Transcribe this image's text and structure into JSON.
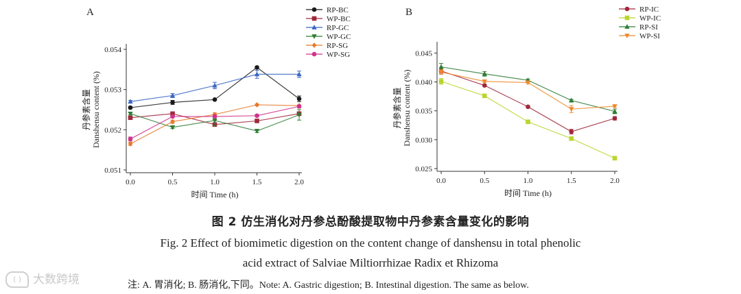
{
  "chart_data": [
    {
      "type": "line",
      "panel_label": "A",
      "xlabel": "时间 Time (h)",
      "ylabel_cn": "丹参素含量",
      "ylabel_en": "Danshensu content (%)",
      "x": [
        0.0,
        0.5,
        1.0,
        1.5,
        2.0
      ],
      "xticks": [
        "0.0",
        "0.5",
        "1.0",
        "1.5",
        "2.0"
      ],
      "ylim": [
        0.051,
        0.054
      ],
      "yticks": [
        "0.051",
        "0.052",
        "0.053",
        "0.054"
      ],
      "legend_position": "top-right",
      "series": [
        {
          "name": "RP-BC",
          "marker": "circle",
          "color": "#1a1a1a",
          "values": [
            0.05255,
            0.05268,
            0.05275,
            0.05355,
            0.05277
          ],
          "errors": [
            3e-05,
            5e-05,
            2e-05,
            3e-05,
            7e-05
          ]
        },
        {
          "name": "WP-BC",
          "marker": "square",
          "color": "#a0283c",
          "values": [
            0.0523,
            0.0524,
            0.05213,
            0.05222,
            0.0524
          ],
          "errors": [
            3e-05,
            3e-05,
            4e-05,
            4e-05,
            4e-05
          ]
        },
        {
          "name": "RP-GC",
          "marker": "triangle",
          "color": "#3a66c4",
          "values": [
            0.0527,
            0.05285,
            0.0531,
            0.05338,
            0.05338
          ],
          "errors": [
            3e-05,
            5e-05,
            8e-05,
            0.0001,
            8e-05
          ]
        },
        {
          "name": "WP-GC",
          "marker": "tri-down",
          "color": "#2e7d32",
          "values": [
            0.0524,
            0.05206,
            0.05223,
            0.05197,
            0.05237
          ],
          "errors": [
            3e-05,
            3e-05,
            0.00013,
            4e-05,
            0.00013
          ]
        },
        {
          "name": "RP-SG",
          "marker": "diamond",
          "color": "#e6782a",
          "values": [
            0.05165,
            0.0522,
            0.05238,
            0.05262,
            0.0526
          ],
          "errors": [
            4e-05,
            4e-05,
            4e-05,
            2e-05,
            2e-05
          ]
        },
        {
          "name": "WP-SG",
          "marker": "circle",
          "color": "#d0328c",
          "values": [
            0.05177,
            0.05233,
            0.05233,
            0.05235,
            0.05258
          ],
          "errors": [
            5e-05,
            3e-05,
            3e-05,
            3e-05,
            3e-05
          ]
        }
      ]
    },
    {
      "type": "line",
      "panel_label": "B",
      "xlabel": "时间 Time (h)",
      "ylabel_cn": "丹参素含量",
      "ylabel_en": "Danshensu content (%)",
      "x": [
        0.0,
        0.5,
        1.0,
        1.5,
        2.0
      ],
      "xticks": [
        "0.0",
        "0.5",
        "1.0",
        "1.5",
        "2.0"
      ],
      "ylim": [
        0.025,
        0.046
      ],
      "yticks": [
        "0.025",
        "0.030",
        "0.035",
        "0.040",
        "0.045"
      ],
      "legend_position": "top-right",
      "series": [
        {
          "name": "RP-IC",
          "marker": "circle",
          "color": "#a0283c",
          "values": [
            0.0419,
            0.0394,
            0.0357,
            0.0314,
            0.0337
          ],
          "errors": [
            0.0004,
            0.0002,
            0.0002,
            0.0004,
            0.0003
          ]
        },
        {
          "name": "WP-IC",
          "marker": "square",
          "color": "#b8d62e",
          "values": [
            0.0401,
            0.0376,
            0.0331,
            0.0302,
            0.0268
          ],
          "errors": [
            0.0005,
            0.0002,
            0.0002,
            0.0002,
            0.0003
          ]
        },
        {
          "name": "RP-SI",
          "marker": "triangle",
          "color": "#2e7d32",
          "values": [
            0.0426,
            0.0414,
            0.0403,
            0.0368,
            0.0349
          ],
          "errors": [
            0.0006,
            0.0004,
            0.0002,
            0.0002,
            0.0004
          ]
        },
        {
          "name": "WP-SI",
          "marker": "tri-down",
          "color": "#f0892a",
          "values": [
            0.0417,
            0.0401,
            0.0399,
            0.0353,
            0.0358
          ],
          "errors": [
            0.0004,
            0.0002,
            0.0002,
            0.0006,
            0.0002
          ]
        }
      ]
    }
  ],
  "caption": {
    "cn": "图 2    仿生消化对丹参总酚酸提取物中丹参素含量变化的影响",
    "en_line1": "Fig. 2    Effect of biomimetic digestion on the content change of danshensu in total phenolic",
    "en_line2": "acid extract of Salviae Miltiorrhizae Radix et Rhizoma",
    "note": "注: A. 胃消化; B. 肠消化,下同。Note: A. Gastric digestion; B. Intestinal digestion. The same as below."
  },
  "watermark": "大数跨境"
}
